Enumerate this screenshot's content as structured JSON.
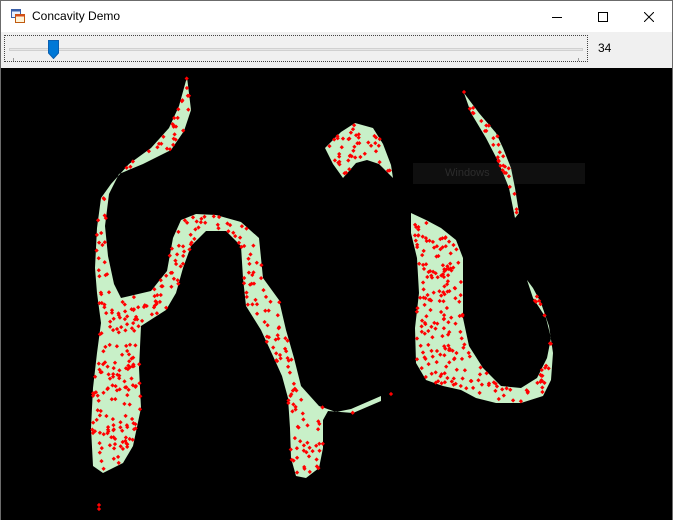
{
  "window": {
    "title": "Concavity Demo"
  },
  "toolbar": {
    "slider_value": 34,
    "value_label": "34"
  },
  "canvas": {
    "watermark_text": "Windows",
    "fill_color": "#c8f0c8",
    "point_color": "#ff0000",
    "background": "#000000"
  },
  "icons": {
    "app": "app-window-icon",
    "minimize": "minimize-icon",
    "maximize": "maximize-icon",
    "close": "close-icon"
  }
}
